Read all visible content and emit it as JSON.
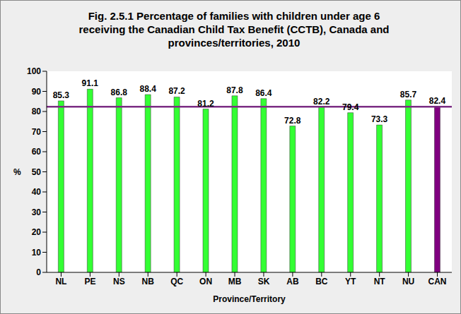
{
  "chart_data": {
    "type": "bar",
    "title": "Fig. 2.5.1 Percentage of families with children under age 6 receiving the Canadian Child Tax Benefit (CCTB), Canada and provinces/territories, 2010",
    "x_label": "Province/Territory",
    "y_label": "%",
    "categories": [
      "NL",
      "PE",
      "NS",
      "NB",
      "QC",
      "ON",
      "MB",
      "SK",
      "AB",
      "BC",
      "YT",
      "NT",
      "NU",
      "CAN"
    ],
    "values": [
      85.3,
      91.1,
      86.8,
      88.4,
      87.2,
      81.2,
      87.8,
      86.4,
      72.8,
      82.2,
      79.4,
      73.3,
      85.7,
      82.4
    ],
    "colors": [
      "#33ff33",
      "#33ff33",
      "#33ff33",
      "#33ff33",
      "#33ff33",
      "#33ff33",
      "#33ff33",
      "#33ff33",
      "#33ff33",
      "#33ff33",
      "#33ff33",
      "#33ff33",
      "#33ff33",
      "#800080"
    ],
    "reference_line": {
      "value": 82.4,
      "color": "#7b2c83"
    },
    "ylim": [
      0,
      100
    ],
    "yticks": [
      0,
      10,
      20,
      30,
      40,
      50,
      60,
      70,
      80,
      90,
      100
    ],
    "grid": false,
    "data_labels": true
  }
}
